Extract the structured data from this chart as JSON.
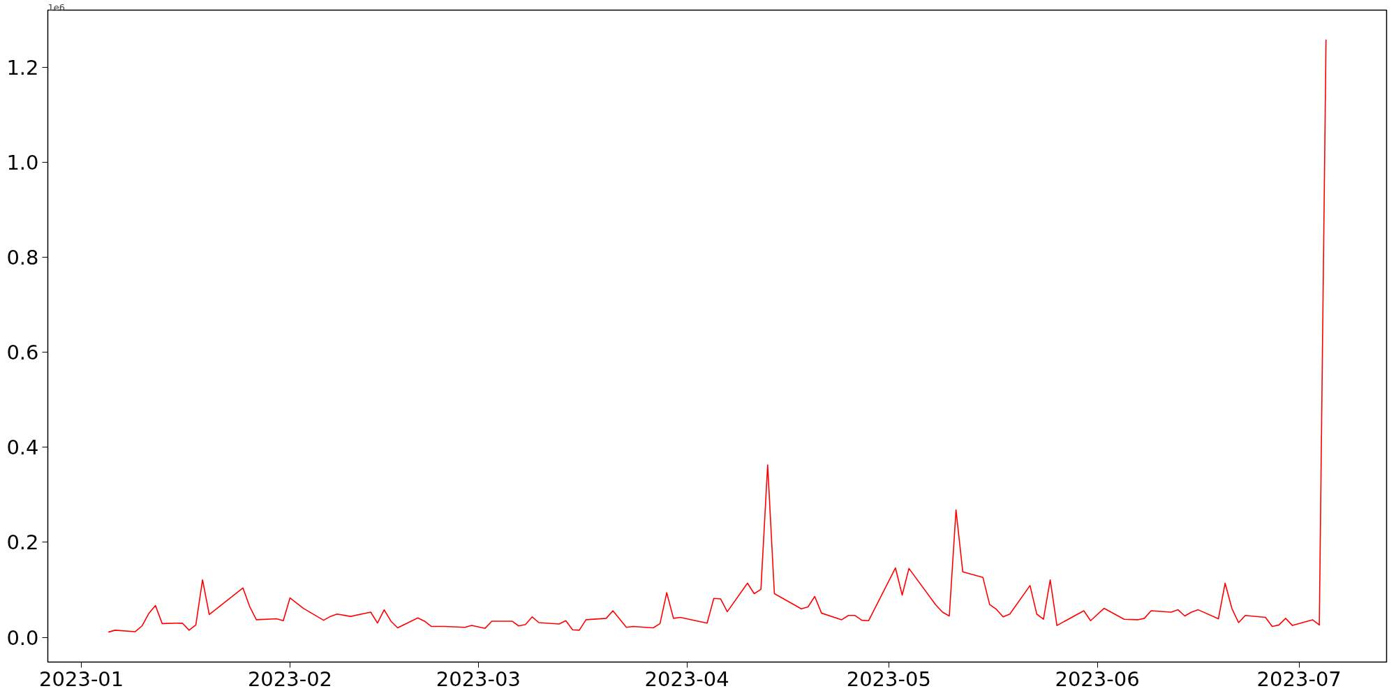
{
  "chart_data": {
    "type": "line",
    "x": [
      "2023-01-05",
      "2023-01-06",
      "2023-01-09",
      "2023-01-10",
      "2023-01-11",
      "2023-01-12",
      "2023-01-13",
      "2023-01-16",
      "2023-01-17",
      "2023-01-18",
      "2023-01-19",
      "2023-01-20",
      "2023-01-25",
      "2023-01-26",
      "2023-01-27",
      "2023-01-30",
      "2023-01-31",
      "2023-02-01",
      "2023-02-03",
      "2023-02-06",
      "2023-02-07",
      "2023-02-08",
      "2023-02-10",
      "2023-02-13",
      "2023-02-14",
      "2023-02-15",
      "2023-02-16",
      "2023-02-17",
      "2023-02-20",
      "2023-02-21",
      "2023-02-22",
      "2023-02-24",
      "2023-02-27",
      "2023-02-28",
      "2023-03-02",
      "2023-03-03",
      "2023-03-06",
      "2023-03-07",
      "2023-03-08",
      "2023-03-09",
      "2023-03-10",
      "2023-03-13",
      "2023-03-14",
      "2023-03-15",
      "2023-03-16",
      "2023-03-17",
      "2023-03-20",
      "2023-03-21",
      "2023-03-23",
      "2023-03-24",
      "2023-03-27",
      "2023-03-28",
      "2023-03-29",
      "2023-03-30",
      "2023-03-31",
      "2023-04-04",
      "2023-04-05",
      "2023-04-06",
      "2023-04-07",
      "2023-04-10",
      "2023-04-11",
      "2023-04-12",
      "2023-04-13",
      "2023-04-14",
      "2023-04-17",
      "2023-04-18",
      "2023-04-19",
      "2023-04-20",
      "2023-04-21",
      "2023-04-24",
      "2023-04-25",
      "2023-04-26",
      "2023-04-27",
      "2023-04-28",
      "2023-05-02",
      "2023-05-03",
      "2023-05-04",
      "2023-05-08",
      "2023-05-09",
      "2023-05-10",
      "2023-05-11",
      "2023-05-12",
      "2023-05-15",
      "2023-05-16",
      "2023-05-17",
      "2023-05-18",
      "2023-05-19",
      "2023-05-22",
      "2023-05-23",
      "2023-05-24",
      "2023-05-25",
      "2023-05-26",
      "2023-05-30",
      "2023-05-31",
      "2023-06-02",
      "2023-06-05",
      "2023-06-07",
      "2023-06-08",
      "2023-06-09",
      "2023-06-12",
      "2023-06-13",
      "2023-06-14",
      "2023-06-15",
      "2023-06-16",
      "2023-06-19",
      "2023-06-20",
      "2023-06-21",
      "2023-06-22",
      "2023-06-23",
      "2023-06-26",
      "2023-06-27",
      "2023-06-28",
      "2023-06-29",
      "2023-06-30",
      "2023-07-03",
      "2023-07-04",
      "2023-07-05"
    ],
    "series": [
      {
        "color": "#ff0000",
        "values": [
          0.011,
          0.015,
          0.012,
          0.024,
          0.05,
          0.067,
          0.029,
          0.03,
          0.015,
          0.026,
          0.121,
          0.048,
          0.104,
          0.065,
          0.037,
          0.039,
          0.035,
          0.083,
          0.061,
          0.036,
          0.044,
          0.049,
          0.044,
          0.053,
          0.03,
          0.058,
          0.034,
          0.02,
          0.041,
          0.034,
          0.023,
          0.023,
          0.021,
          0.025,
          0.019,
          0.034,
          0.034,
          0.024,
          0.027,
          0.043,
          0.031,
          0.028,
          0.035,
          0.016,
          0.015,
          0.037,
          0.04,
          0.056,
          0.021,
          0.023,
          0.02,
          0.029,
          0.094,
          0.04,
          0.042,
          0.03,
          0.082,
          0.081,
          0.054,
          0.114,
          0.092,
          0.101,
          0.363,
          0.092,
          0.068,
          0.06,
          0.064,
          0.086,
          0.051,
          0.037,
          0.046,
          0.046,
          0.036,
          0.035,
          0.146,
          0.089,
          0.145,
          0.068,
          0.053,
          0.045,
          0.268,
          0.138,
          0.126,
          0.069,
          0.059,
          0.043,
          0.049,
          0.109,
          0.049,
          0.038,
          0.121,
          0.025,
          0.056,
          0.035,
          0.061,
          0.038,
          0.037,
          0.04,
          0.056,
          0.053,
          0.058,
          0.045,
          0.053,
          0.058,
          0.039,
          0.114,
          0.061,
          0.031,
          0.046,
          0.042,
          0.023,
          0.026,
          0.04,
          0.025,
          0.037,
          0.026,
          1.258
        ]
      }
    ],
    "xlim": [
      "2022-12-27",
      "2023-07-14"
    ],
    "xticks": [
      "2023-01",
      "2023-02",
      "2023-03",
      "2023-04",
      "2023-05",
      "2023-06",
      "2023-07"
    ],
    "ylim": [
      -0.052,
      1.32
    ],
    "yticks": [
      {
        "value": 0,
        "label": "0.0"
      },
      0.2,
      0.4,
      0.6,
      0.8,
      {
        "value": 1,
        "label": "1.0"
      },
      1.2
    ],
    "annotations": [
      "1e6"
    ],
    "grid": false,
    "marker": "none",
    "line_style": "solid"
  }
}
